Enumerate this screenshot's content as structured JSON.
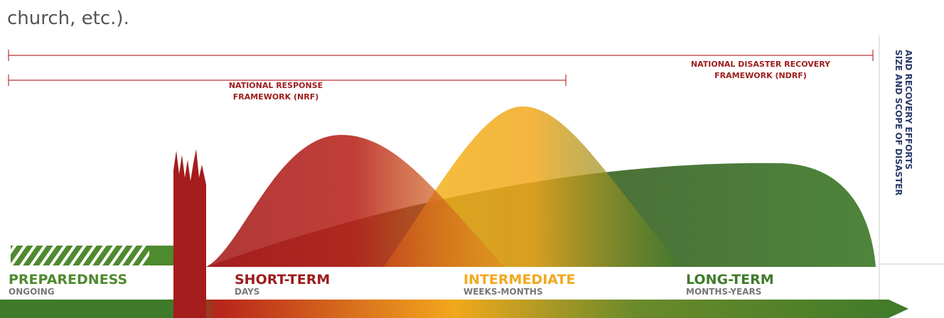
{
  "caption": "church, etc.).",
  "frameworks": [
    {
      "lines": [
        "NATIONAL RESPONSE",
        "FRAMEWORK (NRF)"
      ]
    },
    {
      "lines": [
        "NATIONAL DISASTER RECOVERY",
        "FRAMEWORK (NDRF)"
      ]
    }
  ],
  "axis_label": {
    "lines": [
      "SIZE AND SCOPE OF DISASTER",
      "AND RECOVERY EFFORTS"
    ]
  },
  "phases": [
    {
      "name": "PREPAREDNESS",
      "period": "ONGOING",
      "color": "#4e8a2e"
    },
    {
      "name": "SHORT-TERM",
      "period": "DAYS",
      "color": "#9c1c1c"
    },
    {
      "name": "INTERMEDIATE",
      "period": "WEEKS-MONTHS",
      "color": "#f2a81d"
    },
    {
      "name": "LONG-TERM",
      "period": "MONTHS-YEARS",
      "color": "#3f7a2a"
    }
  ]
}
